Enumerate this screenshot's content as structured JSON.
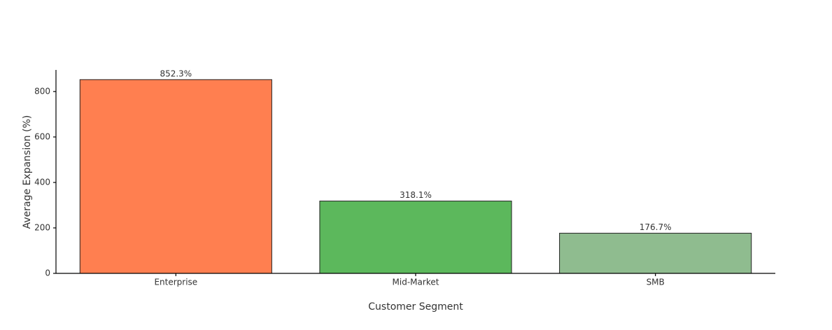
{
  "chart_data": {
    "type": "bar",
    "x_label": "Customer Segment",
    "y_label": "Average Expansion (%)",
    "categories": [
      "Enterprise",
      "Mid-Market",
      "SMB"
    ],
    "values": [
      852.3,
      318.1,
      176.7
    ],
    "value_labels": [
      "852.3%",
      "318.1%",
      "176.7%"
    ],
    "colors": [
      "#ff7f50",
      "#5cb85c",
      "#8fbc8f"
    ],
    "ylim": [
      0,
      895
    ],
    "yticks": [
      0,
      200,
      400,
      600,
      800
    ],
    "grid": false
  }
}
